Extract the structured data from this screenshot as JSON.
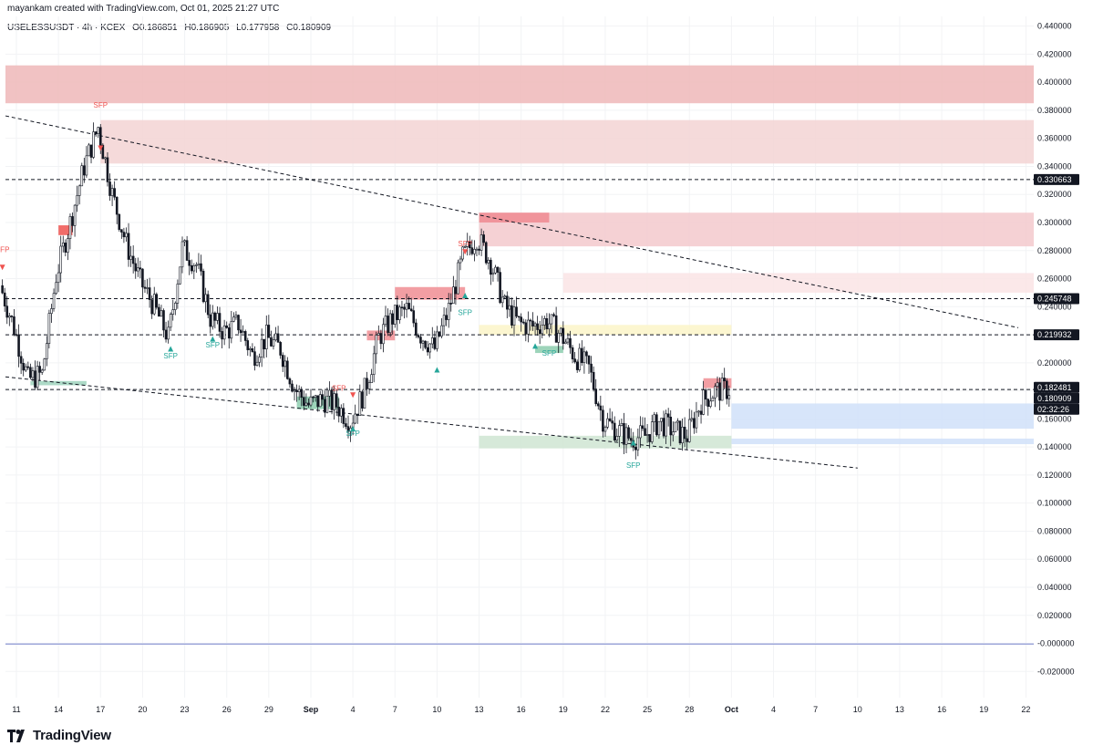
{
  "header": {
    "credit": "mayankam created with TradingView.com, Oct 01, 2025 21:27 UTC",
    "symbol": "USELESSUSDT · 4h · KCEX",
    "open": "O0.186851",
    "high": "H0.186905",
    "low": "L0.177958",
    "close": "C0.180909"
  },
  "brand": {
    "name": "TradingView",
    "logo_icon": "tradingview-logo-icon"
  },
  "colors": {
    "bull": "#26a69a",
    "bear": "#ef5350",
    "candle": "#131722",
    "resistance_zone": "#f0b6b9",
    "support_zone": "#c9dcf5",
    "demand_zone": "#c8e0cc",
    "label_bg": "#131722",
    "line": "#131722",
    "blue_line": "#9fa8da"
  },
  "chart_data": {
    "type": "candlestick",
    "symbol": "USELESSUSDT",
    "interval": "4h",
    "exchange": "KCEX",
    "x_ticks": [
      "11",
      "14",
      "17",
      "20",
      "23",
      "26",
      "29",
      "Sep",
      "4",
      "7",
      "10",
      "13",
      "16",
      "19",
      "22",
      "25",
      "28",
      "Oct",
      "4",
      "7",
      "10",
      "13",
      "16",
      "19",
      "22"
    ],
    "y_ticks": [
      "0.440000",
      "0.420000",
      "0.400000",
      "0.380000",
      "0.360000",
      "0.340000",
      "0.320000",
      "0.300000",
      "0.280000",
      "0.260000",
      "0.240000",
      "0.220000",
      "0.200000",
      "0.180000",
      "0.160000",
      "0.140000",
      "0.120000",
      "0.100000",
      "0.080000",
      "0.060000",
      "0.040000",
      "0.020000",
      "-0.000000",
      "-0.020000"
    ],
    "ylim": [
      -0.026,
      0.446
    ],
    "x_range_days": [
      "2025-08-10",
      "2025-10-23"
    ],
    "price_labels": [
      {
        "value": 0.330663,
        "text": "0.330663"
      },
      {
        "value": 0.245748,
        "text": "0.245748"
      },
      {
        "value": 0.219932,
        "text": "0.219932"
      },
      {
        "value": 0.182481,
        "text": "0.182481"
      },
      {
        "value": 0.180909,
        "text": "0.180909"
      }
    ],
    "countdown": "02:32:26",
    "horizontal_levels": [
      0.330663,
      0.245748,
      0.219932,
      0.181
    ],
    "blue_level": -0.0005,
    "trendlines": [
      {
        "from": [
          "2025-08-10",
          0.376
        ],
        "to": [
          "2025-10-23",
          0.225
        ]
      },
      {
        "from": [
          "2025-08-10",
          0.19
        ],
        "to": [
          "2025-10-10",
          0.125
        ]
      }
    ],
    "zones": [
      {
        "name": "resistance-top",
        "from": "2025-08-10",
        "to": "2025-10-23",
        "low": 0.385,
        "high": 0.412,
        "color": "#efb7b9"
      },
      {
        "name": "resistance-2",
        "from": "2025-08-17",
        "to": "2025-10-23",
        "low": 0.342,
        "high": 0.373,
        "color": "#f3d3d4"
      },
      {
        "name": "resistance-3",
        "from": "2025-09-13",
        "to": "2025-10-23",
        "low": 0.283,
        "high": 0.307,
        "color": "#f3c9cc"
      },
      {
        "name": "resistance-4",
        "from": "2025-09-19",
        "to": "2025-10-23",
        "low": 0.25,
        "high": 0.264,
        "color": "#fae4e5"
      },
      {
        "name": "yellow-zone",
        "from": "2025-09-13",
        "to": "2025-10-01",
        "low": 0.22,
        "high": 0.227,
        "color": "#fbf5c8"
      },
      {
        "name": "support-blue",
        "from": "2025-10-01",
        "to": "2025-10-23",
        "low": 0.153,
        "high": 0.171,
        "color": "#d0e1f9"
      },
      {
        "name": "support-blue-thin",
        "from": "2025-10-01",
        "to": "2025-10-23",
        "low": 0.142,
        "high": 0.146,
        "color": "#d0e1f9"
      },
      {
        "name": "demand-green",
        "from": "2025-09-13",
        "to": "2025-10-01",
        "low": 0.139,
        "high": 0.148,
        "color": "#cfe5d2"
      },
      {
        "name": "ob-red-1",
        "from": "2025-09-13",
        "to": "2025-09-18",
        "low": 0.3,
        "high": 0.307,
        "color": "#ef8a91"
      },
      {
        "name": "ob-red-2",
        "from": "2025-09-07",
        "to": "2025-09-12",
        "low": 0.245,
        "high": 0.254,
        "color": "#f08d93"
      },
      {
        "name": "ob-red-3",
        "from": "2025-09-05",
        "to": "2025-09-07",
        "low": 0.216,
        "high": 0.223,
        "color": "#f08d93"
      },
      {
        "name": "ob-red-4",
        "from": "2025-09-29",
        "to": "2025-10-01",
        "low": 0.182,
        "high": 0.189,
        "color": "#f08d93"
      },
      {
        "name": "ob-red-5",
        "from": "2025-08-14",
        "to": "2025-08-15",
        "low": 0.291,
        "high": 0.298,
        "color": "#ef5350"
      },
      {
        "name": "ob-green-1",
        "from": "2025-08-31",
        "to": "2025-09-03",
        "low": 0.167,
        "high": 0.176,
        "color": "#8ccdae"
      },
      {
        "name": "ob-green-2",
        "from": "2025-09-17",
        "to": "2025-09-19",
        "low": 0.207,
        "high": 0.212,
        "color": "#8ccdae"
      },
      {
        "name": "ob-green-3",
        "from": "2025-08-12",
        "to": "2025-08-16",
        "low": 0.184,
        "high": 0.187,
        "color": "#9fd3bd"
      }
    ],
    "sfp_labels": [
      {
        "text": "SFP",
        "date": "2025-08-10",
        "value": 0.279,
        "kind": "bear"
      },
      {
        "text": "SFP",
        "date": "2025-08-17",
        "value": 0.382,
        "kind": "bear"
      },
      {
        "text": "SFP",
        "date": "2025-09-12",
        "value": 0.283,
        "kind": "bear"
      },
      {
        "text": "SFP",
        "date": "2025-09-03",
        "value": 0.18,
        "kind": "bear"
      },
      {
        "text": "SFP",
        "date": "2025-08-22",
        "value": 0.203,
        "kind": "bull"
      },
      {
        "text": "SFP",
        "date": "2025-08-25",
        "value": 0.211,
        "kind": "bull"
      },
      {
        "text": "SFP",
        "date": "2025-09-04",
        "value": 0.148,
        "kind": "bull"
      },
      {
        "text": "SFP",
        "date": "2025-09-12",
        "value": 0.234,
        "kind": "bull"
      },
      {
        "text": "SFP",
        "date": "2025-09-18",
        "value": 0.205,
        "kind": "bull"
      },
      {
        "text": "SFP",
        "date": "2025-09-24",
        "value": 0.125,
        "kind": "bull"
      }
    ],
    "markers": [
      {
        "date": "2025-08-10",
        "value": 0.268,
        "kind": "bear"
      },
      {
        "date": "2025-08-17",
        "value": 0.353,
        "kind": "bear"
      },
      {
        "date": "2025-09-12",
        "value": 0.279,
        "kind": "bear"
      },
      {
        "date": "2025-09-04",
        "value": 0.177,
        "kind": "bear"
      },
      {
        "date": "2025-08-22",
        "value": 0.21,
        "kind": "bull"
      },
      {
        "date": "2025-08-25",
        "value": 0.217,
        "kind": "bull"
      },
      {
        "date": "2025-09-04",
        "value": 0.153,
        "kind": "bull"
      },
      {
        "date": "2025-09-10",
        "value": 0.195,
        "kind": "bull"
      },
      {
        "date": "2025-09-12",
        "value": 0.248,
        "kind": "bull"
      },
      {
        "date": "2025-09-17",
        "value": 0.212,
        "kind": "bull"
      },
      {
        "date": "2025-09-24",
        "value": 0.143,
        "kind": "bull"
      }
    ],
    "closes": [
      [
        "2025-08-10",
        0.255
      ],
      [
        "2025-08-11",
        0.225
      ],
      [
        "2025-08-12",
        0.188
      ],
      [
        "2025-08-13",
        0.192
      ],
      [
        "2025-08-14",
        0.262
      ],
      [
        "2025-08-15",
        0.3
      ],
      [
        "2025-08-16",
        0.34
      ],
      [
        "2025-08-17",
        0.368
      ],
      [
        "2025-08-18",
        0.32
      ],
      [
        "2025-08-19",
        0.285
      ],
      [
        "2025-08-20",
        0.258
      ],
      [
        "2025-08-21",
        0.24
      ],
      [
        "2025-08-22",
        0.218
      ],
      [
        "2025-08-23",
        0.282
      ],
      [
        "2025-08-24",
        0.27
      ],
      [
        "2025-08-25",
        0.232
      ],
      [
        "2025-08-26",
        0.222
      ],
      [
        "2025-08-27",
        0.228
      ],
      [
        "2025-08-28",
        0.205
      ],
      [
        "2025-08-29",
        0.218
      ],
      [
        "2025-08-30",
        0.21
      ],
      [
        "2025-08-31",
        0.182
      ],
      [
        "2025-09-01",
        0.17
      ],
      [
        "2025-09-02",
        0.174
      ],
      [
        "2025-09-03",
        0.17
      ],
      [
        "2025-09-04",
        0.158
      ],
      [
        "2025-09-05",
        0.18
      ],
      [
        "2025-09-06",
        0.218
      ],
      [
        "2025-09-07",
        0.232
      ],
      [
        "2025-09-08",
        0.238
      ],
      [
        "2025-09-09",
        0.22
      ],
      [
        "2025-09-10",
        0.21
      ],
      [
        "2025-09-11",
        0.238
      ],
      [
        "2025-09-12",
        0.275
      ],
      [
        "2025-09-13",
        0.29
      ],
      [
        "2025-09-14",
        0.272
      ],
      [
        "2025-09-15",
        0.24
      ],
      [
        "2025-09-16",
        0.228
      ],
      [
        "2025-09-17",
        0.226
      ],
      [
        "2025-09-18",
        0.23
      ],
      [
        "2025-09-19",
        0.22
      ],
      [
        "2025-09-20",
        0.205
      ],
      [
        "2025-09-21",
        0.196
      ],
      [
        "2025-09-22",
        0.16
      ],
      [
        "2025-09-23",
        0.152
      ],
      [
        "2025-09-24",
        0.146
      ],
      [
        "2025-09-25",
        0.148
      ],
      [
        "2025-09-26",
        0.158
      ],
      [
        "2025-09-27",
        0.152
      ],
      [
        "2025-09-28",
        0.148
      ],
      [
        "2025-09-29",
        0.172
      ],
      [
        "2025-09-30",
        0.18
      ],
      [
        "2025-10-01",
        0.181
      ]
    ]
  }
}
